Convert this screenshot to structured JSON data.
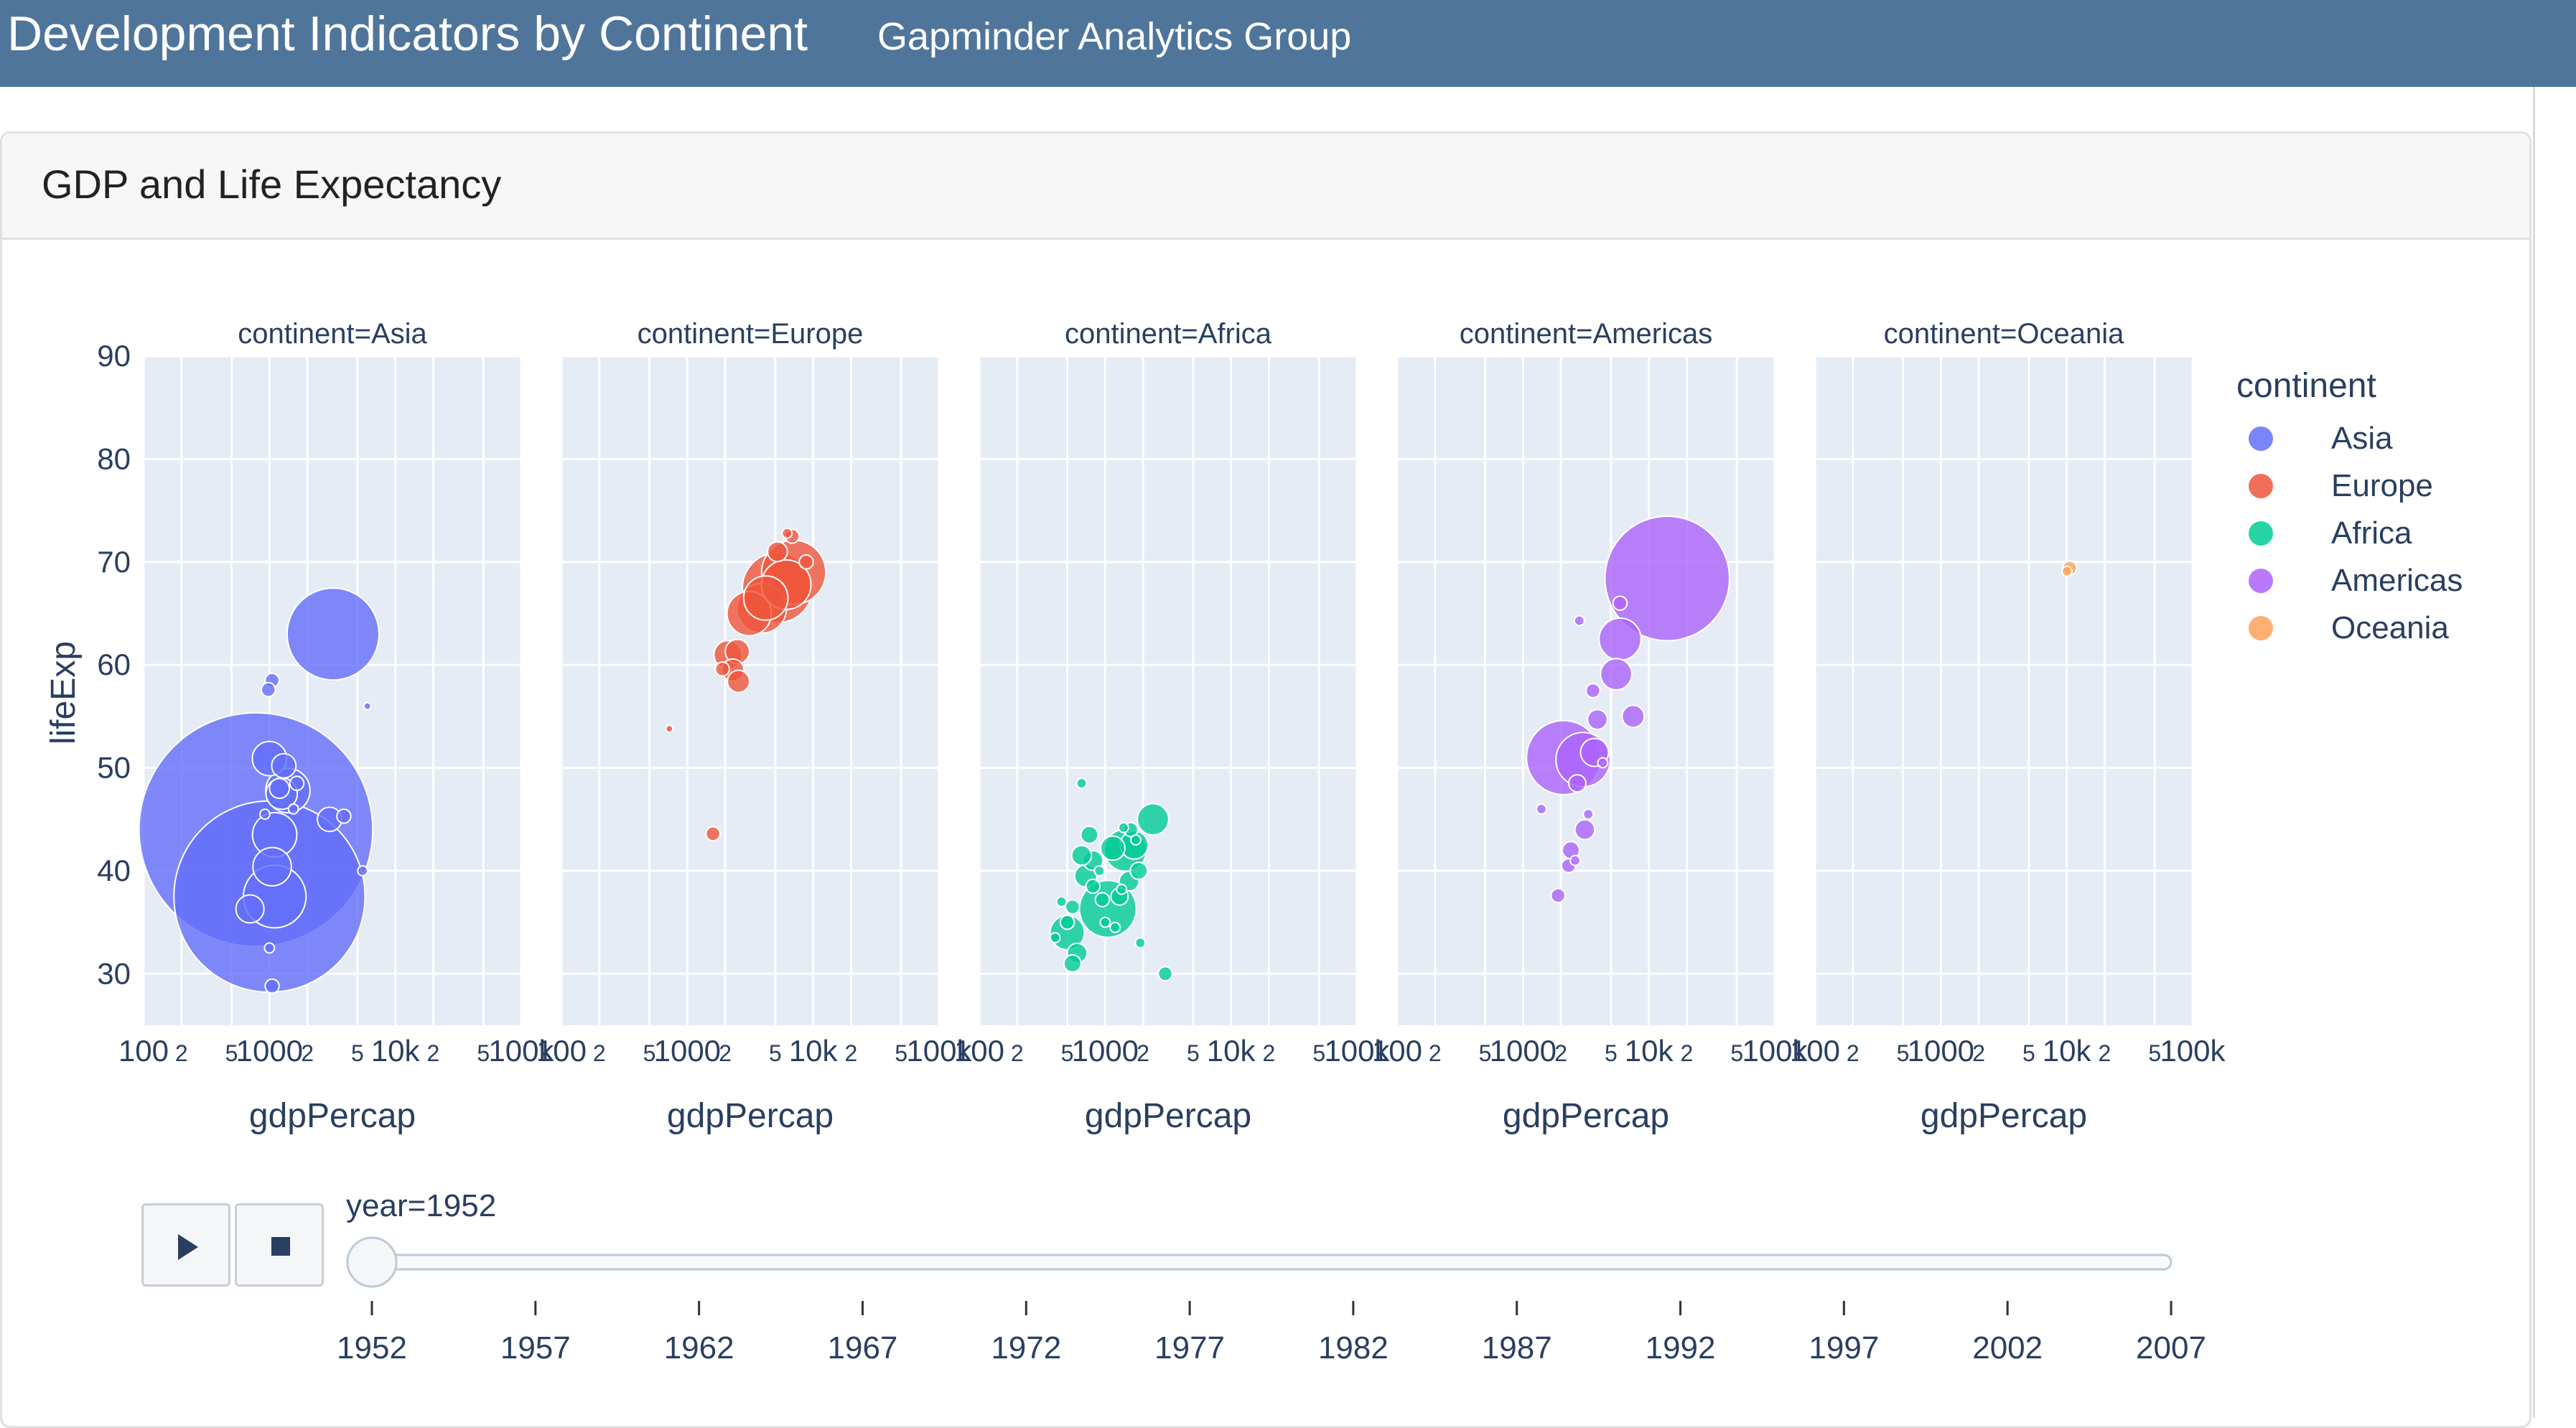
{
  "header": {
    "title": "Development Indicators by Continent",
    "subtitle": "Gapminder Analytics Group"
  },
  "card": {
    "title": "GDP and Life Expectancy"
  },
  "colors": {
    "header_bg": "#50759b",
    "plot_bg": "#e5ecf6",
    "Asia": "#636efa",
    "Europe": "#ef553b",
    "Africa": "#00cc96",
    "Americas": "#ab63fa",
    "Oceania": "#ffa15a"
  },
  "chart_data": {
    "type": "scatter",
    "x_field": "gdpPercap",
    "y_field": "lifeExp",
    "x_scale": "log",
    "xlim": [
      100,
      100000
    ],
    "ylim": [
      25,
      90
    ],
    "y_ticks": [
      30,
      40,
      50,
      60,
      70,
      80,
      90
    ],
    "x_tick_labels": [
      "100",
      "2",
      "5",
      "1000",
      "2",
      "5",
      "10k",
      "2",
      "5",
      "100k"
    ],
    "size_field": "pop",
    "facet_field": "continent",
    "facets": [
      {
        "title": "continent=Asia",
        "name": "Asia",
        "points": [
          {
            "x": 780,
            "y": 44,
            "size": 556
          },
          {
            "x": 1000,
            "y": 37.5,
            "size": 372
          },
          {
            "x": 1100,
            "y": 37.5,
            "size": 40
          },
          {
            "x": 1100,
            "y": 43.5,
            "size": 20
          },
          {
            "x": 1050,
            "y": 40.4,
            "size": 15
          },
          {
            "x": 700,
            "y": 36.3,
            "size": 8
          },
          {
            "x": 3200,
            "y": 63,
            "size": 86
          },
          {
            "x": 1000,
            "y": 50.9,
            "size": 12
          },
          {
            "x": 1400,
            "y": 47.8,
            "size": 20
          },
          {
            "x": 1250,
            "y": 47.5,
            "size": 10
          },
          {
            "x": 1300,
            "y": 50.2,
            "size": 6
          },
          {
            "x": 3000,
            "y": 45,
            "size": 6
          },
          {
            "x": 1050,
            "y": 58.5,
            "size": 2
          },
          {
            "x": 980,
            "y": 57.6,
            "size": 2
          },
          {
            "x": 1200,
            "y": 48,
            "size": 4
          },
          {
            "x": 1650,
            "y": 48.5,
            "size": 2
          },
          {
            "x": 3900,
            "y": 45.3,
            "size": 2
          },
          {
            "x": 5500,
            "y": 40,
            "size": 1
          },
          {
            "x": 1050,
            "y": 28.8,
            "size": 2
          },
          {
            "x": 1000,
            "y": 32.5,
            "size": 1
          },
          {
            "x": 1550,
            "y": 46,
            "size": 1
          },
          {
            "x": 920,
            "y": 45.5,
            "size": 1
          },
          {
            "x": 6000,
            "y": 56,
            "size": 0.5
          }
        ]
      },
      {
        "title": "continent=Europe",
        "name": "Europe",
        "points": [
          {
            "x": 1600,
            "y": 43.6,
            "size": 2
          },
          {
            "x": 720,
            "y": 53.8,
            "size": 0.5
          },
          {
            "x": 2300,
            "y": 59.5,
            "size": 5
          },
          {
            "x": 2100,
            "y": 61,
            "size": 8
          },
          {
            "x": 2500,
            "y": 61.3,
            "size": 6
          },
          {
            "x": 2550,
            "y": 58.4,
            "size": 5
          },
          {
            "x": 3100,
            "y": 65,
            "size": 20
          },
          {
            "x": 3900,
            "y": 65.5,
            "size": 25
          },
          {
            "x": 4200,
            "y": 66.5,
            "size": 20
          },
          {
            "x": 5200,
            "y": 67.5,
            "size": 50
          },
          {
            "x": 6100,
            "y": 67.8,
            "size": 25
          },
          {
            "x": 7000,
            "y": 69,
            "size": 42
          },
          {
            "x": 8800,
            "y": 70,
            "size": 2
          },
          {
            "x": 6800,
            "y": 72.5,
            "size": 2
          },
          {
            "x": 6200,
            "y": 72.8,
            "size": 1
          },
          {
            "x": 5200,
            "y": 71,
            "size": 4
          },
          {
            "x": 1900,
            "y": 59.6,
            "size": 2
          }
        ]
      },
      {
        "title": "continent=Africa",
        "name": "Africa",
        "points": [
          {
            "x": 1050,
            "y": 36.3,
            "size": 33
          },
          {
            "x": 1450,
            "y": 42,
            "size": 18
          },
          {
            "x": 2400,
            "y": 45,
            "size": 10
          },
          {
            "x": 500,
            "y": 34,
            "size": 12
          },
          {
            "x": 1700,
            "y": 42.5,
            "size": 8
          },
          {
            "x": 1150,
            "y": 42.2,
            "size": 6
          },
          {
            "x": 700,
            "y": 39.5,
            "size": 5
          },
          {
            "x": 800,
            "y": 41,
            "size": 4
          },
          {
            "x": 650,
            "y": 41.5,
            "size": 4
          },
          {
            "x": 1550,
            "y": 39,
            "size": 4
          },
          {
            "x": 1300,
            "y": 37.5,
            "size": 3
          },
          {
            "x": 750,
            "y": 43.5,
            "size": 3
          },
          {
            "x": 1850,
            "y": 40,
            "size": 3
          },
          {
            "x": 600,
            "y": 32,
            "size": 4
          },
          {
            "x": 550,
            "y": 31,
            "size": 3
          },
          {
            "x": 3000,
            "y": 30,
            "size": 2
          },
          {
            "x": 800,
            "y": 38.5,
            "size": 2
          },
          {
            "x": 550,
            "y": 36.5,
            "size": 2
          },
          {
            "x": 500,
            "y": 35,
            "size": 2
          },
          {
            "x": 1600,
            "y": 44,
            "size": 2
          },
          {
            "x": 950,
            "y": 37.2,
            "size": 2
          },
          {
            "x": 650,
            "y": 48.5,
            "size": 1
          },
          {
            "x": 1750,
            "y": 43,
            "size": 1
          },
          {
            "x": 1000,
            "y": 35,
            "size": 1
          },
          {
            "x": 1200,
            "y": 34.5,
            "size": 1
          },
          {
            "x": 900,
            "y": 40,
            "size": 1
          },
          {
            "x": 1900,
            "y": 33,
            "size": 1
          },
          {
            "x": 1400,
            "y": 44.2,
            "size": 1
          },
          {
            "x": 450,
            "y": 37,
            "size": 1
          },
          {
            "x": 400,
            "y": 33.5,
            "size": 1
          },
          {
            "x": 1350,
            "y": 38.2,
            "size": 1
          }
        ]
      },
      {
        "title": "continent=Americas",
        "name": "Americas",
        "points": [
          {
            "x": 13990,
            "y": 68.4,
            "size": 158
          },
          {
            "x": 2100,
            "y": 51,
            "size": 56
          },
          {
            "x": 3000,
            "y": 50.8,
            "size": 30
          },
          {
            "x": 5900,
            "y": 62.5,
            "size": 18
          },
          {
            "x": 5500,
            "y": 59.1,
            "size": 10
          },
          {
            "x": 3700,
            "y": 51.5,
            "size": 8
          },
          {
            "x": 3900,
            "y": 54.7,
            "size": 4
          },
          {
            "x": 3100,
            "y": 44,
            "size": 4
          },
          {
            "x": 2400,
            "y": 42,
            "size": 3
          },
          {
            "x": 7500,
            "y": 55,
            "size": 5
          },
          {
            "x": 2700,
            "y": 48.5,
            "size": 3
          },
          {
            "x": 1900,
            "y": 37.6,
            "size": 2
          },
          {
            "x": 3600,
            "y": 57.5,
            "size": 2
          },
          {
            "x": 5900,
            "y": 66,
            "size": 2
          },
          {
            "x": 2300,
            "y": 40.5,
            "size": 2
          },
          {
            "x": 2800,
            "y": 64.3,
            "size": 1
          },
          {
            "x": 1400,
            "y": 46,
            "size": 1
          },
          {
            "x": 4300,
            "y": 50.5,
            "size": 1
          },
          {
            "x": 3300,
            "y": 45.5,
            "size": 1
          },
          {
            "x": 2600,
            "y": 41,
            "size": 1
          }
        ]
      },
      {
        "title": "continent=Oceania",
        "name": "Oceania",
        "points": [
          {
            "x": 10040,
            "y": 69.1,
            "size": 1
          },
          {
            "x": 10560,
            "y": 69.4,
            "size": 2
          }
        ]
      }
    ],
    "xlabel": "gdpPercap",
    "ylabel": "lifeExp",
    "legend": {
      "title": "continent",
      "position": "right",
      "items": [
        "Asia",
        "Europe",
        "Africa",
        "Americas",
        "Oceania"
      ]
    },
    "grid": true
  },
  "slider": {
    "current_label": "year=1952",
    "years": [
      "1952",
      "1957",
      "1962",
      "1967",
      "1972",
      "1977",
      "1982",
      "1987",
      "1992",
      "1997",
      "2002",
      "2007"
    ],
    "value": "1952"
  },
  "controls": {
    "play_icon": "play-icon",
    "stop_icon": "stop-icon"
  }
}
